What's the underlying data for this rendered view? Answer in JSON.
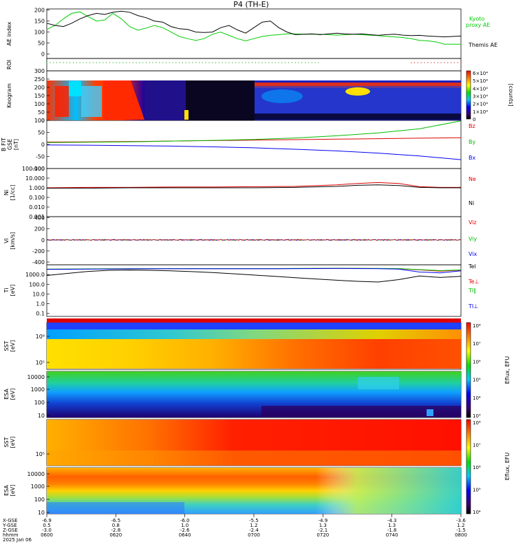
{
  "title": "P4 (TH-E)",
  "chart_data": [
    {
      "id": "ae",
      "type": "line",
      "ylabel": "AE index",
      "ylim": [
        -20,
        205
      ],
      "yticks": [
        0,
        50,
        100,
        150,
        200
      ],
      "x": [
        0,
        0.02,
        0.04,
        0.06,
        0.08,
        0.1,
        0.12,
        0.14,
        0.16,
        0.18,
        0.2,
        0.22,
        0.24,
        0.26,
        0.28,
        0.3,
        0.32,
        0.34,
        0.36,
        0.38,
        0.4,
        0.42,
        0.44,
        0.46,
        0.48,
        0.5,
        0.52,
        0.54,
        0.56,
        0.58,
        0.6,
        0.62,
        0.64,
        0.66,
        0.68,
        0.7,
        0.72,
        0.74,
        0.76,
        0.78,
        0.8,
        0.82,
        0.84,
        0.86,
        0.88,
        0.9,
        0.92,
        0.94,
        0.96,
        0.98,
        1.0
      ],
      "series": [
        {
          "name": "Kyoto proxy AE",
          "color": "#00cc00",
          "values": [
            112,
            130,
            160,
            185,
            192,
            170,
            150,
            155,
            185,
            160,
            125,
            108,
            118,
            130,
            120,
            100,
            80,
            70,
            62,
            70,
            90,
            100,
            85,
            70,
            60,
            70,
            80,
            85,
            88,
            92,
            92,
            90,
            90,
            90,
            88,
            86,
            88,
            90,
            88,
            86,
            84,
            80,
            78,
            75,
            70,
            62,
            60,
            55,
            45,
            45,
            45
          ]
        },
        {
          "name": "Themis AE",
          "color": "#000000",
          "values": [
            140,
            130,
            125,
            140,
            160,
            175,
            185,
            180,
            190,
            195,
            190,
            175,
            165,
            150,
            145,
            125,
            115,
            112,
            100,
            98,
            100,
            120,
            130,
            110,
            95,
            120,
            145,
            150,
            120,
            100,
            88,
            90,
            92,
            88,
            92,
            95,
            92,
            90,
            92,
            88,
            85,
            88,
            90,
            86,
            84,
            85,
            82,
            80,
            78,
            80,
            82
          ]
        }
      ],
      "legend_labels": [
        "Kyoto",
        "proxy AE",
        "Themis AE"
      ]
    },
    {
      "id": "roi",
      "type": "scatter",
      "ylabel": "ROI",
      "series": [
        {
          "name": "ROI",
          "color": "#00aa00",
          "segments": [
            [
              0.0,
              0.66
            ]
          ]
        },
        {
          "name": "ROI",
          "color": "#dd0000",
          "segments": [
            [
              0.88,
              1.0
            ]
          ]
        }
      ]
    },
    {
      "id": "keogram",
      "type": "heatmap",
      "ylabel": "Keogram",
      "ylim": [
        0,
        300
      ],
      "yticks": [
        0,
        50,
        100,
        150,
        200,
        250,
        300
      ],
      "colorbar": {
        "label": "[counts]",
        "ticks": [
          "6×10⁴",
          "5×10⁴",
          "4×10⁴",
          "3×10⁴",
          "2×10⁴",
          "1×10⁴",
          "0"
        ]
      }
    },
    {
      "id": "bfield",
      "type": "line",
      "ylabel": "B FIT\n GSE\n [nT]",
      "ylim": [
        -100,
        100
      ],
      "yticks": [
        100,
        50,
        0,
        -50,
        -100
      ],
      "x": [
        0,
        0.1,
        0.2,
        0.3,
        0.4,
        0.5,
        0.6,
        0.7,
        0.8,
        0.9,
        1.0
      ],
      "series": [
        {
          "name": "Bz",
          "color": "#dd0000",
          "values": [
            10,
            11,
            12,
            14,
            16,
            18,
            20,
            22,
            24,
            26,
            28
          ]
        },
        {
          "name": "By",
          "color": "#00bb00",
          "values": [
            8,
            9,
            11,
            14,
            17,
            21,
            27,
            36,
            48,
            65,
            98
          ]
        },
        {
          "name": "Bx",
          "color": "#0000ee",
          "values": [
            -2,
            -3,
            -5,
            -7,
            -10,
            -14,
            -20,
            -27,
            -36,
            -48,
            -63
          ]
        }
      ]
    },
    {
      "id": "ni",
      "type": "line",
      "ylabel": "Ni\n [1/cc]",
      "log": true,
      "ylim": [
        0.001,
        100
      ],
      "yticks": [
        "100.000",
        "10.000",
        "1.000",
        "0.100",
        "0.010",
        "0.001"
      ],
      "x": [
        0,
        0.1,
        0.2,
        0.3,
        0.4,
        0.5,
        0.6,
        0.7,
        0.75,
        0.8,
        0.85,
        0.9,
        0.95,
        1.0
      ],
      "series": [
        {
          "name": "Ne",
          "color": "#dd0000",
          "values": [
            1.0,
            1.1,
            1.1,
            1.2,
            1.2,
            1.3,
            1.4,
            2.0,
            2.8,
            3.5,
            2.8,
            1.3,
            1.1,
            1.1
          ]
        },
        {
          "name": "Ni",
          "color": "#000000",
          "values": [
            0.9,
            0.9,
            1.0,
            1.0,
            1.0,
            1.0,
            1.1,
            1.4,
            1.8,
            2.0,
            1.7,
            1.1,
            1.0,
            1.0
          ]
        }
      ]
    },
    {
      "id": "vi",
      "type": "line",
      "ylabel": "Vi\n [km/s]",
      "ylim": [
        -450,
        420
      ],
      "yticks": [
        400,
        200,
        0,
        -200,
        -400
      ],
      "series": [
        {
          "name": "Viz",
          "color": "#dd0000"
        },
        {
          "name": "Viy",
          "color": "#00bb00"
        },
        {
          "name": "Vix",
          "color": "#0000ee"
        }
      ]
    },
    {
      "id": "ti",
      "type": "line",
      "ylabel": "Ti\n [eV]",
      "log": true,
      "ylim": [
        0.05,
        10000
      ],
      "yticks": [
        "1000.0",
        "100.0",
        "10.0",
        "1.0",
        "0.1"
      ],
      "x": [
        0,
        0.05,
        0.1,
        0.15,
        0.2,
        0.25,
        0.3,
        0.35,
        0.4,
        0.45,
        0.5,
        0.55,
        0.6,
        0.65,
        0.7,
        0.75,
        0.8,
        0.85,
        0.9,
        0.95,
        1.0
      ],
      "series": [
        {
          "name": "Tel",
          "color": "#000000",
          "values": [
            800,
            1300,
            2100,
            2700,
            2900,
            2700,
            2400,
            2000,
            1600,
            1200,
            880,
            650,
            480,
            350,
            260,
            200,
            170,
            300,
            700,
            500,
            650
          ]
        },
        {
          "name": "Te⊥",
          "color": "#dd0000",
          "values": [
            3500,
            3600,
            3700,
            3800,
            3900,
            4000,
            4000,
            4000,
            4000,
            4000,
            4000,
            4000,
            4100,
            4200,
            4300,
            4200,
            4100,
            4000,
            3000,
            2200,
            2800
          ]
        },
        {
          "name": "TI∥",
          "color": "#00bb00",
          "values": [
            3600,
            3700,
            3800,
            3900,
            4000,
            4100,
            4100,
            4100,
            4100,
            4100,
            4100,
            4100,
            4200,
            4300,
            4400,
            4300,
            4200,
            4100,
            3200,
            2500,
            3000
          ]
        },
        {
          "name": "TI⊥",
          "color": "#0000ee",
          "values": [
            3400,
            3500,
            3600,
            3700,
            3800,
            3900,
            3900,
            3900,
            3900,
            3900,
            3900,
            3900,
            4000,
            4100,
            4200,
            4100,
            4000,
            3600,
            1800,
            1500,
            2400
          ]
        }
      ]
    },
    {
      "id": "sst_e",
      "type": "heatmap",
      "ylabel": "SST\n [eV]",
      "yticks": [
        "10⁶",
        "10⁵"
      ]
    },
    {
      "id": "esa_e",
      "type": "heatmap",
      "ylabel": "ESA\n [eV]",
      "yticks": [
        "10000",
        "1000",
        "100",
        "10"
      ],
      "colorbar": {
        "label": "Eflux, EFU",
        "ticks": [
          "10⁸",
          "10⁷",
          "10⁶",
          "10⁵",
          "10⁴",
          "10³"
        ]
      }
    },
    {
      "id": "sst_i",
      "type": "heatmap",
      "ylabel": "SST\n [eV]",
      "yticks": [
        "10⁵"
      ]
    },
    {
      "id": "esa_i",
      "type": "heatmap",
      "ylabel": "ESA\n [eV]",
      "yticks": [
        "10000",
        "1000",
        "100",
        "10"
      ],
      "colorbar": {
        "label": "Eflux, EFU",
        "ticks": [
          "10⁸",
          "10⁷",
          "10⁶",
          "10⁵",
          "10⁴"
        ]
      }
    }
  ],
  "colorbar_top": {
    "label": "Eflux, EFU",
    "ticks": [
      "10⁸",
      "10⁷",
      "10⁶",
      "10⁵",
      "10⁴",
      "10³"
    ]
  },
  "xaxis": {
    "row_labels": [
      "X-GSE",
      "Y-GSE",
      "Z-GSE",
      "hhmm",
      "2025 Jan 06"
    ],
    "ticks": [
      {
        "x": "-6.9",
        "y": "0.5",
        "z": "-3.0",
        "t": "0600"
      },
      {
        "x": "-6.5",
        "y": "0.8",
        "z": "-2.8",
        "t": "0620"
      },
      {
        "x": "-6.0",
        "y": "1.0",
        "z": "-2.6",
        "t": "0640"
      },
      {
        "x": "-5.5",
        "y": "1.2",
        "z": "-2.4",
        "t": "0700"
      },
      {
        "x": "-4.9",
        "y": "1.3",
        "z": "-2.1",
        "t": "0720"
      },
      {
        "x": "-4.3",
        "y": "1.3",
        "z": "-1.8",
        "t": "0740"
      },
      {
        "x": "-3.6",
        "y": "1.2",
        "z": "-1.5",
        "t": "0800"
      }
    ]
  }
}
